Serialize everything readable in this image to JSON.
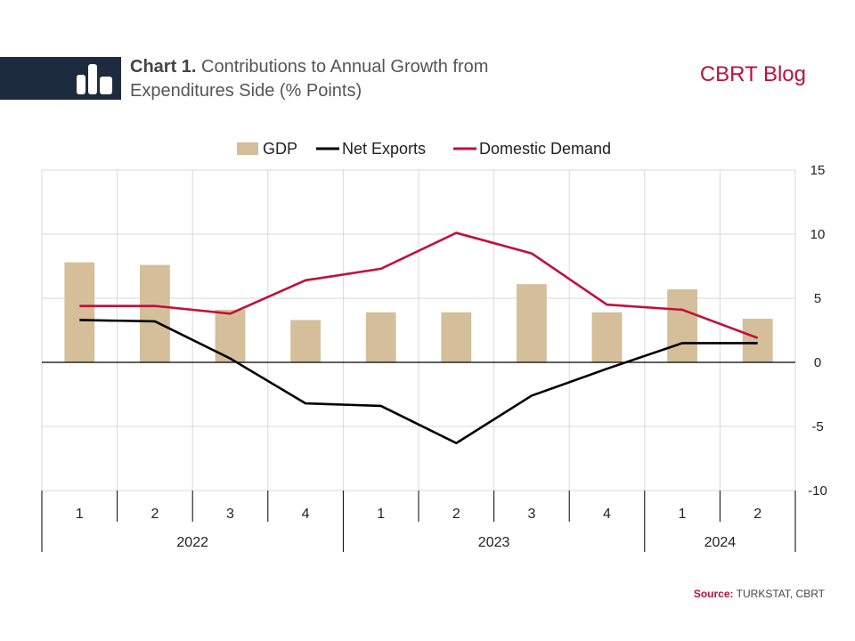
{
  "header": {
    "title_prefix": "Chart 1.",
    "title_text": "Contributions to Annual Growth from Expenditures Side (% Points)",
    "brand": "CBRT Blog"
  },
  "colors": {
    "gdp_bar": "#d4bf9a",
    "net_exports": "#000000",
    "domestic_demand": "#c0103a",
    "header_block": "#1d2b3e"
  },
  "footer": {
    "source_label": "Source:",
    "source_text": "TURKSTAT, CBRT"
  },
  "chart_data": {
    "type": "bar",
    "categories": [
      "1",
      "2",
      "3",
      "4",
      "1",
      "2",
      "3",
      "4",
      "1",
      "2"
    ],
    "category_groups": [
      {
        "label": "2022",
        "count": 4
      },
      {
        "label": "2023",
        "count": 4
      },
      {
        "label": "2024",
        "count": 2
      }
    ],
    "series": [
      {
        "name": "GDP",
        "type": "bar",
        "values": [
          7.8,
          7.6,
          4.1,
          3.3,
          3.9,
          3.9,
          6.1,
          3.9,
          5.7,
          3.4
        ]
      },
      {
        "name": "Net Exports",
        "type": "line",
        "values": [
          3.3,
          3.2,
          0.3,
          -3.2,
          -3.4,
          -6.3,
          -2.6,
          -0.5,
          1.5,
          1.5
        ]
      },
      {
        "name": "Domestic Demand",
        "type": "line",
        "values": [
          4.4,
          4.4,
          3.8,
          6.4,
          7.3,
          10.1,
          8.5,
          4.5,
          4.1,
          1.9
        ]
      }
    ],
    "ylim": [
      -10,
      15
    ],
    "yticks": [
      "15",
      "10",
      "5",
      "0",
      "-5",
      "-10"
    ],
    "y_axis_side": "right",
    "legend_position": "top-center",
    "grid": true
  }
}
